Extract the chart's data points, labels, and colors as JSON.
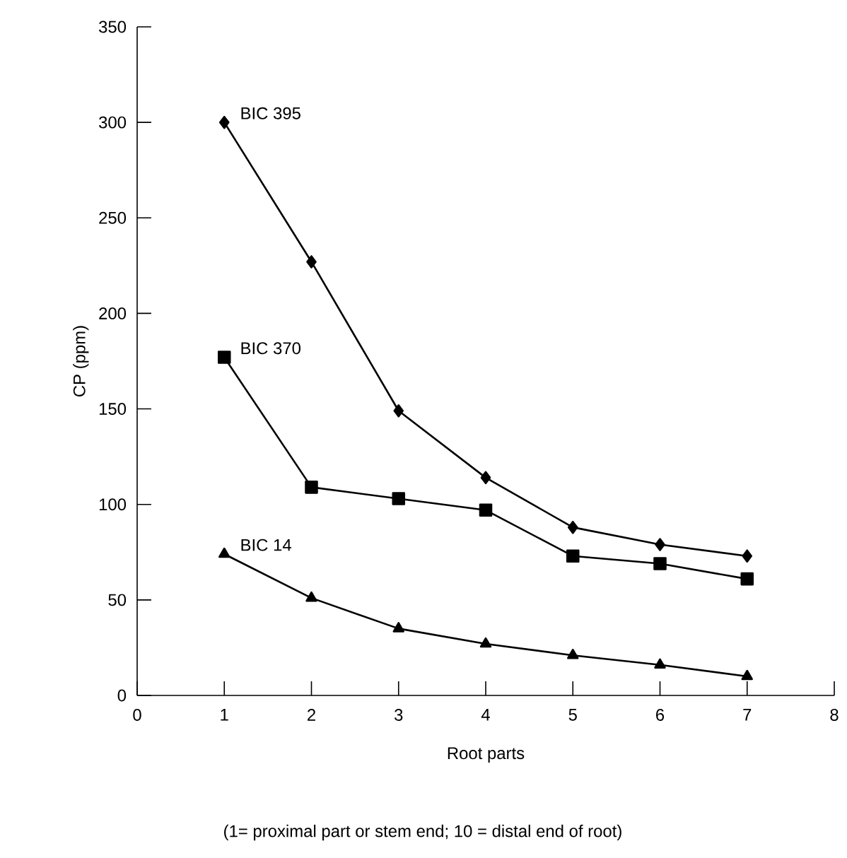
{
  "chart_data": {
    "type": "line",
    "xlabel": "Root parts",
    "ylabel": "CP (ppm)",
    "annotations": [
      "(1= proximal part or stem end; 10 = distal end of root)"
    ],
    "x": [
      1,
      2,
      3,
      4,
      5,
      6,
      7
    ],
    "series": [
      {
        "name": "BIC 395",
        "color": "#000000",
        "marker": "diamond",
        "values": [
          300,
          227,
          149,
          114,
          88,
          79,
          73
        ]
      },
      {
        "name": "BIC 370",
        "color": "#000000",
        "marker": "square",
        "values": [
          177,
          109,
          103,
          97,
          73,
          69,
          61
        ]
      },
      {
        "name": "BIC 14",
        "color": "#000000",
        "marker": "triangle",
        "values": [
          74,
          51,
          35,
          27,
          21,
          16,
          10
        ]
      }
    ],
    "xlim": [
      0,
      8
    ],
    "xticks": [
      0,
      1,
      2,
      3,
      4,
      5,
      6,
      7,
      8
    ],
    "ylim": [
      0,
      350
    ],
    "yticks": [
      0,
      50,
      100,
      150,
      200,
      250,
      300,
      350
    ],
    "grid": false,
    "line_style": "solid"
  }
}
